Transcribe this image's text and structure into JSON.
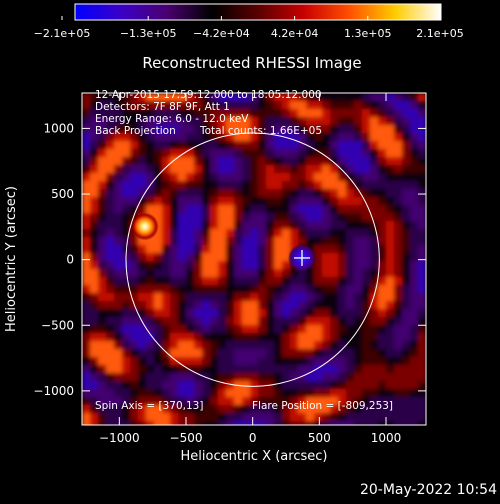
{
  "chart_data": {
    "type": "heatmap",
    "title": "Reconstructed RHESSI Image",
    "xlabel": "Heliocentric X (arcsec)",
    "ylabel": "Heliocentric Y (arcsec)",
    "xlim": [
      -1280,
      1300
    ],
    "ylim": [
      -1260,
      1270
    ],
    "xticks": [
      -1000,
      -500,
      0,
      500,
      1000
    ],
    "xtick_labels": [
      "−1000",
      "−500",
      "0",
      "500",
      "1000"
    ],
    "yticks": [
      -1000,
      -500,
      0,
      500,
      1000
    ],
    "ytick_labels": [
      "−1000",
      "−500",
      "0",
      "500",
      "1000"
    ],
    "colorbar": {
      "min": -210000,
      "max": 210000,
      "tick_labels": [
        "−2.1e+05",
        "−1.3e+05",
        "−4.2e+04",
        "4.2e+04",
        "1.3e+05",
        "2.1e+05"
      ],
      "colors": [
        "#0000ff",
        "#3a00c8",
        "#4a0070",
        "#000000",
        "#5a0000",
        "#c80000",
        "#ff5000",
        "#ffcc00",
        "#ffffff"
      ]
    },
    "annotations": {
      "time_range": "12-Apr-2015 17:59:12.000 to 18:05:12.000",
      "detectors": "Detectors: 7F 8F 9F, Att 1",
      "energy_range": "Energy Range: 6.0 - 12.0 keV",
      "method": "Back Projection",
      "total_counts": "Total counts: 1.66E+05",
      "spin_axis": "Spin Axis = [370,13]",
      "flare_position": "Flare Position = [-809,253]"
    },
    "solar_limb_radius_arcsec": 950,
    "bright_source": {
      "x": -809,
      "y": 253,
      "sign": "positive"
    },
    "marker": {
      "x": 370,
      "y": 13,
      "sign": "negative"
    }
  },
  "footer": {
    "date_stamp": "20-May-2022 10:54"
  }
}
